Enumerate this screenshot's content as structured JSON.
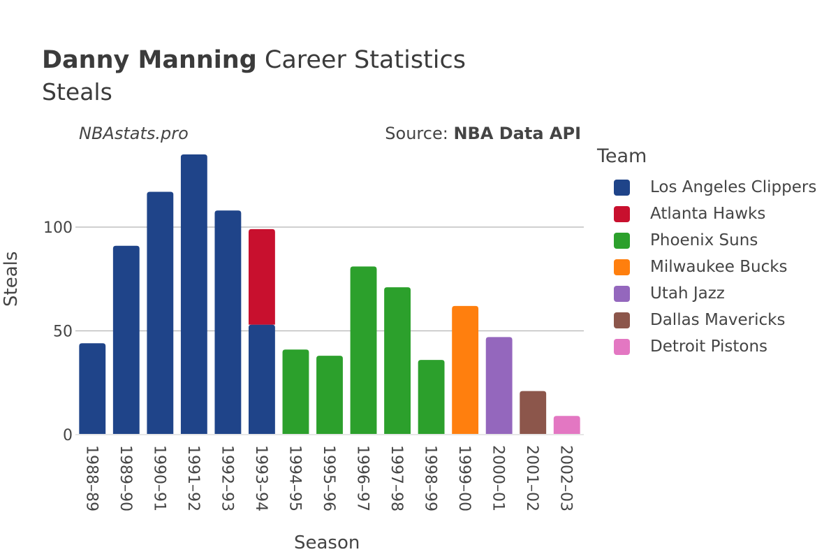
{
  "header": {
    "player_name": "Danny Manning",
    "title_rest": " Career Statistics",
    "subtitle": "Steals",
    "watermark": "NBAstats.pro",
    "source_prefix": "Source: ",
    "source_name": "NBA Data API"
  },
  "legend": {
    "title": "Team",
    "items": [
      {
        "label": "Los Angeles Clippers",
        "color": "#1f4489"
      },
      {
        "label": "Atlanta Hawks",
        "color": "#c8102e"
      },
      {
        "label": "Phoenix Suns",
        "color": "#2ca02c"
      },
      {
        "label": "Milwaukee Bucks",
        "color": "#ff7f0e"
      },
      {
        "label": "Utah Jazz",
        "color": "#9467bd"
      },
      {
        "label": "Dallas Mavericks",
        "color": "#8c564b"
      },
      {
        "label": "Detroit Pistons",
        "color": "#e377c2"
      }
    ]
  },
  "chart_data": {
    "type": "bar",
    "stacked": true,
    "title": "Danny Manning Career Statistics",
    "subtitle": "Steals",
    "xlabel": "Season",
    "ylabel": "Steals",
    "ylim": [
      0,
      135
    ],
    "yticks": [
      0,
      50,
      100
    ],
    "grid": true,
    "categories": [
      "1988–89",
      "1989–90",
      "1990–91",
      "1991–92",
      "1992–93",
      "1993–94",
      "1994–95",
      "1995–96",
      "1996–97",
      "1997–98",
      "1998–99",
      "1999–00",
      "2000–01",
      "2001–02",
      "2002–03"
    ],
    "series": [
      {
        "name": "Los Angeles Clippers",
        "values": [
          44,
          91,
          117,
          135,
          108,
          53,
          0,
          0,
          0,
          0,
          0,
          0,
          0,
          0,
          0
        ]
      },
      {
        "name": "Atlanta Hawks",
        "values": [
          0,
          0,
          0,
          0,
          0,
          46,
          0,
          0,
          0,
          0,
          0,
          0,
          0,
          0,
          0
        ]
      },
      {
        "name": "Phoenix Suns",
        "values": [
          0,
          0,
          0,
          0,
          0,
          0,
          41,
          38,
          81,
          71,
          36,
          0,
          0,
          0,
          0
        ]
      },
      {
        "name": "Milwaukee Bucks",
        "values": [
          0,
          0,
          0,
          0,
          0,
          0,
          0,
          0,
          0,
          0,
          0,
          62,
          0,
          0,
          0
        ]
      },
      {
        "name": "Utah Jazz",
        "values": [
          0,
          0,
          0,
          0,
          0,
          0,
          0,
          0,
          0,
          0,
          0,
          0,
          47,
          0,
          0
        ]
      },
      {
        "name": "Dallas Mavericks",
        "values": [
          0,
          0,
          0,
          0,
          0,
          0,
          0,
          0,
          0,
          0,
          0,
          0,
          0,
          21,
          0
        ]
      },
      {
        "name": "Detroit Pistons",
        "values": [
          0,
          0,
          0,
          0,
          0,
          0,
          0,
          0,
          0,
          0,
          0,
          0,
          0,
          0,
          9
        ]
      }
    ]
  }
}
